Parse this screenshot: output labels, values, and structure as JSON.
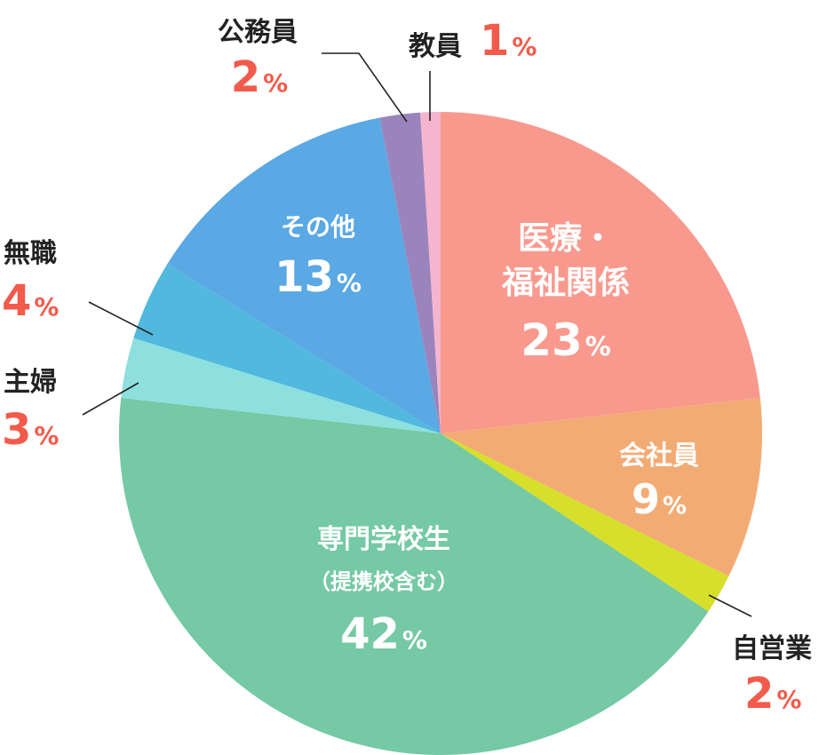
{
  "chart_data": {
    "type": "pie",
    "title": "",
    "unit": "%",
    "slices": [
      {
        "label": "医療・福祉関係",
        "label_lines": [
          "医療・",
          "福祉関係"
        ],
        "value": 23,
        "color": "#f9998e",
        "label_placement": "inside"
      },
      {
        "label": "会社員",
        "label_lines": [
          "会社員"
        ],
        "value": 9,
        "color": "#f3ab74",
        "label_placement": "inside"
      },
      {
        "label": "自営業",
        "label_lines": [
          "自営業"
        ],
        "value": 2,
        "color": "#d6df2a",
        "label_placement": "outside"
      },
      {
        "label": "専門学校生（提携校含む）",
        "label_lines": [
          "専門学校生",
          "（提携校含む）"
        ],
        "value": 42,
        "color": "#75c9a4",
        "label_placement": "inside"
      },
      {
        "label": "主婦",
        "label_lines": [
          "主婦"
        ],
        "value": 3,
        "color": "#8de0de",
        "label_placement": "outside"
      },
      {
        "label": "無職",
        "label_lines": [
          "無職"
        ],
        "value": 4,
        "color": "#51b8de",
        "label_placement": "outside"
      },
      {
        "label": "その他",
        "label_lines": [
          "その他"
        ],
        "value": 13,
        "color": "#5aa8e4",
        "label_placement": "inside"
      },
      {
        "label": "公務員",
        "label_lines": [
          "公務員"
        ],
        "value": 2,
        "color": "#9b84bb",
        "label_placement": "outside"
      },
      {
        "label": "教員",
        "label_lines": [
          "教員"
        ],
        "value": 1,
        "color": "#f5b5cf",
        "label_placement": "outside"
      }
    ]
  }
}
